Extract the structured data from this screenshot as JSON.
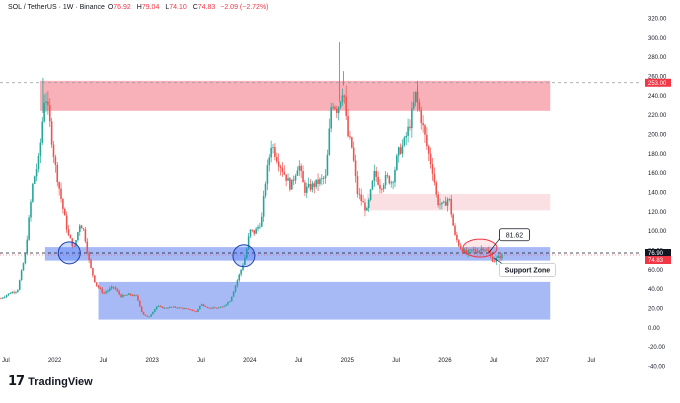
{
  "header": {
    "symbol": "SOL / TetherUS · 1W · Binance",
    "open_label": "O",
    "open": "76.92",
    "high_label": "H",
    "high": "79.04",
    "low_label": "L",
    "low": "74.10",
    "close_label": "C",
    "close": "74.83",
    "change": "−2.09 (−2.72%)"
  },
  "colors": {
    "up": "#26a69a",
    "down": "#ef5350",
    "red_zone": "#f7a9b0",
    "red_zone_light": "#fbdde0",
    "blue_zone": "#98aef5",
    "price_tag": "#f23645",
    "line_tag": "#131722"
  },
  "brand": {
    "icon": "tradingview-logo-icon",
    "name": "TradingView"
  },
  "chart_data": {
    "type": "candlestick",
    "y_range": [
      -40,
      320
    ],
    "y_ticks": [
      -40,
      -20,
      0,
      20,
      40,
      60,
      80,
      100,
      120,
      140,
      160,
      180,
      200,
      220,
      240,
      260,
      280,
      300,
      320
    ],
    "y_tick_labels": [
      "-40.00",
      "-20.00",
      "0.00",
      "20.00",
      "40.00",
      "60.00",
      "80.00",
      "100.00",
      "120.00",
      "140.00",
      "160.00",
      "180.00",
      "200.00",
      "220.00",
      "240.00",
      "260.00",
      "280.00",
      "300.00",
      "320.00"
    ],
    "x_labels": [
      {
        "text": "Jul",
        "date": 2021.5
      },
      {
        "text": "2022",
        "date": 2022.0
      },
      {
        "text": "Jul",
        "date": 2022.5
      },
      {
        "text": "2023",
        "date": 2023.0
      },
      {
        "text": "Jul",
        "date": 2023.5
      },
      {
        "text": "2024",
        "date": 2024.0
      },
      {
        "text": "Jul",
        "date": 2024.5
      },
      {
        "text": "2025",
        "date": 2025.0
      },
      {
        "text": "Jul",
        "date": 2025.5
      },
      {
        "text": "2026",
        "date": 2026.0
      },
      {
        "text": "Jul",
        "date": 2026.5
      },
      {
        "text": "2027",
        "date": 2027.0
      },
      {
        "text": "Jul",
        "date": 2027.5
      }
    ],
    "x_range": [
      2021.44,
      2028.0
    ],
    "price_tags": [
      {
        "label": "76.90",
        "value": 76.9,
        "kind": "line"
      },
      {
        "label": "74.83",
        "value": 74.83,
        "kind": "price"
      },
      {
        "label": "253.00",
        "value": 253.0,
        "kind": "price"
      }
    ],
    "callouts": [
      {
        "text": "81.62",
        "date": 2026.58,
        "value": 81.62
      },
      {
        "text": "Support Zone",
        "date": 2026.6,
        "value": 74.8
      }
    ],
    "zones": [
      {
        "name": "resistance-high",
        "from": 2021.85,
        "to": 2027.08,
        "low": 224,
        "high": 255,
        "style": "red"
      },
      {
        "name": "resistance-mid",
        "from": 2025.2,
        "to": 2027.08,
        "low": 121,
        "high": 138,
        "style": "red_light"
      },
      {
        "name": "support",
        "from": 2021.9,
        "to": 2027.08,
        "low": 69,
        "high": 83,
        "style": "blue"
      },
      {
        "name": "demand",
        "from": 2022.45,
        "to": 2027.08,
        "low": 8,
        "high": 47,
        "style": "blue"
      }
    ],
    "ohlc_keypoints": [
      [
        2021.45,
        30
      ],
      [
        2021.55,
        36
      ],
      [
        2021.62,
        38
      ],
      [
        2021.7,
        75
      ],
      [
        2021.78,
        150
      ],
      [
        2021.84,
        175
      ],
      [
        2021.9,
        245
      ],
      [
        2021.95,
        210
      ],
      [
        2022.0,
        170
      ],
      [
        2022.08,
        125
      ],
      [
        2022.14,
        95
      ],
      [
        2022.2,
        82
      ],
      [
        2022.26,
        108
      ],
      [
        2022.3,
        100
      ],
      [
        2022.36,
        65
      ],
      [
        2022.42,
        45
      ],
      [
        2022.5,
        35
      ],
      [
        2022.6,
        42
      ],
      [
        2022.68,
        32
      ],
      [
        2022.76,
        34
      ],
      [
        2022.84,
        32
      ],
      [
        2022.9,
        14
      ],
      [
        2022.96,
        10
      ],
      [
        2023.05,
        22
      ],
      [
        2023.12,
        20
      ],
      [
        2023.2,
        21
      ],
      [
        2023.3,
        20
      ],
      [
        2023.4,
        18
      ],
      [
        2023.45,
        16
      ],
      [
        2023.5,
        24
      ],
      [
        2023.58,
        20
      ],
      [
        2023.66,
        20
      ],
      [
        2023.72,
        21
      ],
      [
        2023.8,
        28
      ],
      [
        2023.86,
        45
      ],
      [
        2023.92,
        62
      ],
      [
        2023.96,
        75
      ],
      [
        2024.0,
        100
      ],
      [
        2024.05,
        98
      ],
      [
        2024.12,
        110
      ],
      [
        2024.16,
        150
      ],
      [
        2024.22,
        190
      ],
      [
        2024.28,
        175
      ],
      [
        2024.35,
        160
      ],
      [
        2024.42,
        145
      ],
      [
        2024.5,
        170
      ],
      [
        2024.56,
        142
      ],
      [
        2024.62,
        145
      ],
      [
        2024.7,
        150
      ],
      [
        2024.78,
        155
      ],
      [
        2024.84,
        235
      ],
      [
        2024.9,
        225
      ],
      [
        2024.96,
        250
      ],
      [
        2025.0,
        200
      ],
      [
        2025.05,
        185
      ],
      [
        2025.1,
        140
      ],
      [
        2025.15,
        130
      ],
      [
        2025.2,
        120
      ],
      [
        2025.28,
        160
      ],
      [
        2025.34,
        145
      ],
      [
        2025.4,
        155
      ],
      [
        2025.46,
        150
      ],
      [
        2025.52,
        180
      ],
      [
        2025.58,
        190
      ],
      [
        2025.64,
        210
      ],
      [
        2025.7,
        240
      ],
      [
        2025.76,
        215
      ],
      [
        2025.82,
        185
      ],
      [
        2025.88,
        160
      ],
      [
        2025.92,
        130
      ],
      [
        2025.98,
        125
      ],
      [
        2026.04,
        135
      ],
      [
        2026.1,
        95
      ],
      [
        2026.16,
        82
      ],
      [
        2026.22,
        76
      ],
      [
        2026.28,
        80
      ],
      [
        2026.34,
        79
      ],
      [
        2026.4,
        83
      ],
      [
        2026.44,
        78
      ],
      [
        2026.5,
        68
      ],
      [
        2026.54,
        72
      ],
      [
        2026.6,
        74.83
      ]
    ],
    "spikes": [
      {
        "date": 2024.92,
        "high": 295
      },
      {
        "date": 2021.88,
        "high": 258
      },
      {
        "date": 2025.72,
        "high": 255
      },
      {
        "date": 2024.96,
        "high": 265
      }
    ],
    "circles": [
      {
        "date": 2022.15,
        "value": 77,
        "style": "blue"
      },
      {
        "date": 2023.94,
        "value": 74,
        "style": "blue"
      }
    ],
    "ellipses": [
      {
        "date": 2026.36,
        "value": 82,
        "style": "red"
      }
    ]
  }
}
